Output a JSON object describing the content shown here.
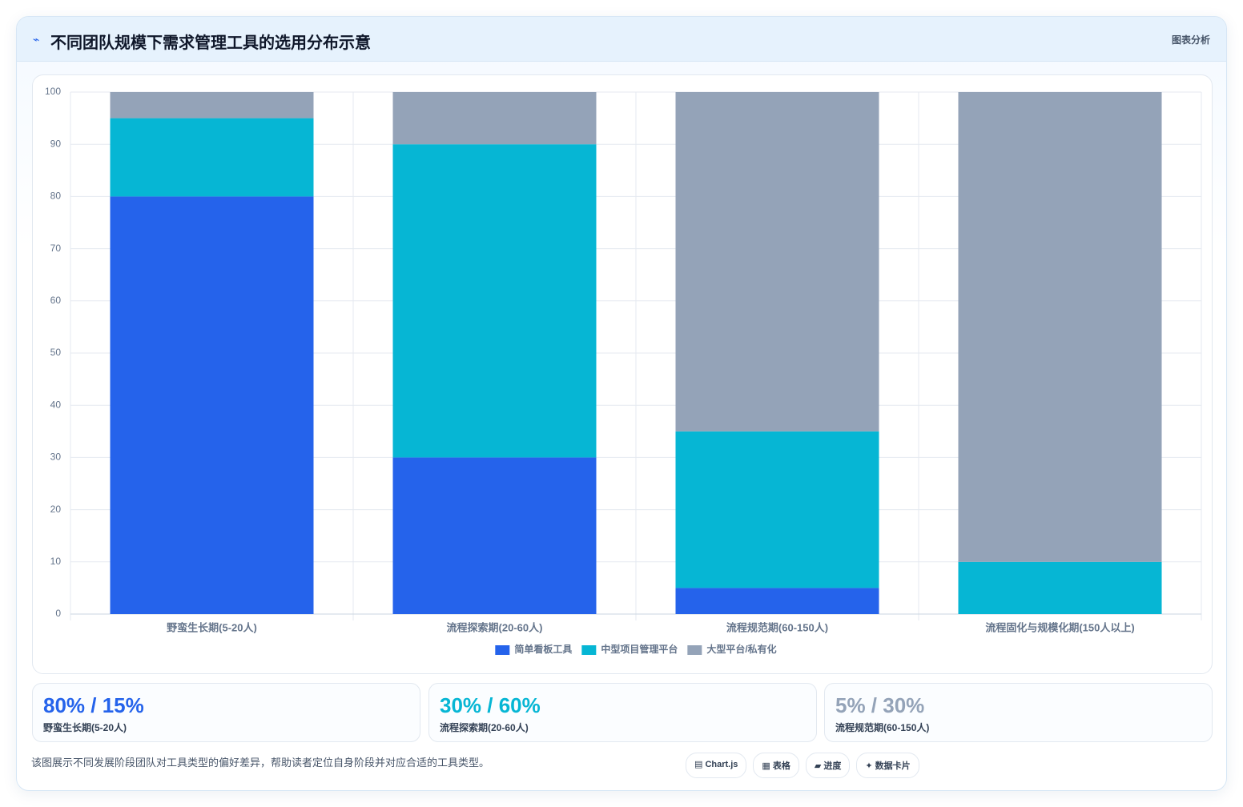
{
  "header": {
    "title": "不同团队规模下需求管理工具的选用分布示意",
    "badge": "图表分析"
  },
  "chart_data": {
    "type": "bar",
    "stacked": true,
    "categories": [
      "野蛮生长期(5-20人)",
      "流程探索期(20-60人)",
      "流程规范期(60-150人)",
      "流程固化与规模化期(150人以上)"
    ],
    "series": [
      {
        "name": "简单看板工具",
        "color": "#2563eb",
        "values": [
          80,
          30,
          5,
          0
        ]
      },
      {
        "name": "中型项目管理平台",
        "color": "#06b6d4",
        "values": [
          15,
          60,
          30,
          10
        ]
      },
      {
        "name": "大型平台/私有化",
        "color": "#94a3b8",
        "values": [
          5,
          10,
          65,
          90
        ]
      }
    ],
    "ylim": [
      0,
      100
    ],
    "yticks": [
      0,
      10,
      20,
      30,
      40,
      50,
      60,
      70,
      80,
      90,
      100
    ],
    "grid": true,
    "legend": "bottom"
  },
  "cards": [
    {
      "value": "80% / 15%"
    },
    {
      "value": "30% / 60%"
    },
    {
      "value": "5% / 30%"
    }
  ],
  "footer": {
    "note": "该图展示不同发展阶段团队对工具类型的偏好差异，帮助读者定位自身阶段并对应合适的工具类型。",
    "tags": [
      "Chart.js",
      "表格",
      "进度",
      "数据卡片"
    ]
  }
}
